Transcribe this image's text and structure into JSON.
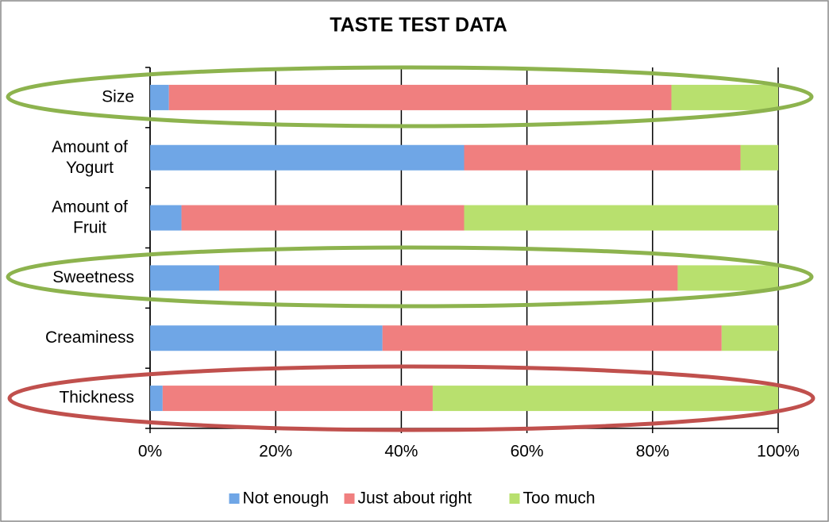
{
  "chart_data": {
    "type": "stacked-bar-horizontal",
    "title": "TASTE TEST DATA",
    "categories": [
      "Size",
      "Amount of Yogurt",
      "Amount of Fruit",
      "Sweetness",
      "Creaminess",
      "Thickness"
    ],
    "series": [
      {
        "name": "Not enough",
        "color": "#6fa6e6",
        "values": [
          3,
          50,
          5,
          11,
          37,
          2
        ]
      },
      {
        "name": "Just about right",
        "color": "#f07f7f",
        "values": [
          80,
          44,
          45,
          73,
          54,
          43
        ]
      },
      {
        "name": "Too much",
        "color": "#b8e06e",
        "values": [
          17,
          6,
          50,
          16,
          9,
          55
        ]
      }
    ],
    "xlim": [
      0,
      100
    ],
    "xticks": [
      {
        "value": 0,
        "label": "0%"
      },
      {
        "value": 20,
        "label": "20%"
      },
      {
        "value": 40,
        "label": "40%"
      },
      {
        "value": 60,
        "label": "60%"
      },
      {
        "value": 80,
        "label": "80%"
      },
      {
        "value": 100,
        "label": "100%"
      }
    ],
    "grid": true,
    "legend": "bottom"
  }
}
